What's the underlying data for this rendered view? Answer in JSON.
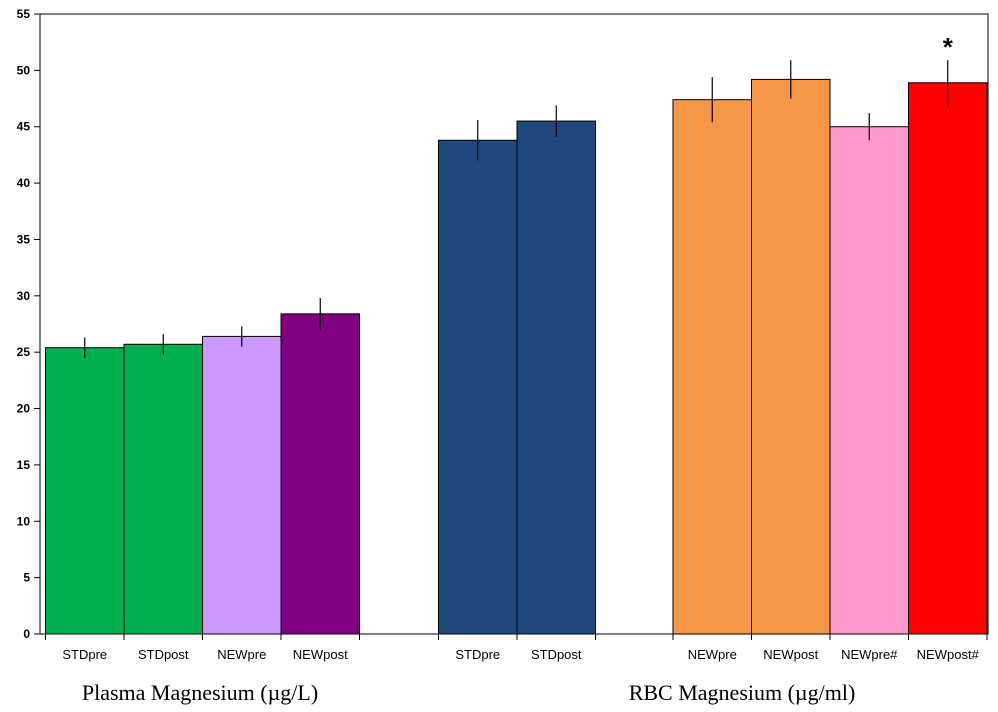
{
  "chart_data": {
    "type": "bar",
    "ylim": [
      0,
      55
    ],
    "yticks": [
      0,
      5,
      10,
      15,
      20,
      25,
      30,
      35,
      40,
      45,
      50,
      55
    ],
    "grid": false,
    "groups": [
      {
        "label": "Plasma Magnesium (µg/L)",
        "bars": [
          {
            "category": "STDpre",
            "value": 25.4,
            "error": 0.9,
            "color": "#00b050"
          },
          {
            "category": "STDpost",
            "value": 25.7,
            "error": 0.9,
            "color": "#00b050"
          },
          {
            "category": "NEWpre",
            "value": 26.4,
            "error": 0.9,
            "color": "#cc99ff"
          },
          {
            "category": "NEWpost",
            "value": 28.4,
            "error": 1.4,
            "color": "#800080"
          }
        ]
      },
      {
        "label": "",
        "bars": [
          {
            "category": "STDpre",
            "value": 43.8,
            "error": 1.8,
            "color": "#1f497d"
          },
          {
            "category": "STDpost",
            "value": 45.5,
            "error": 1.4,
            "color": "#1f497d"
          }
        ]
      },
      {
        "label": "RBC Magnesium (µg/ml)",
        "bars": [
          {
            "category": "NEWpre",
            "value": 47.4,
            "error": 2.0,
            "color": "#f79646"
          },
          {
            "category": "NEWpost",
            "value": 49.2,
            "error": 1.7,
            "color": "#f79646"
          },
          {
            "category": "NEWpre#",
            "value": 45.0,
            "error": 1.2,
            "color": "#ff99cc"
          },
          {
            "category": "NEWpost#",
            "value": 48.9,
            "error": 2.0,
            "color": "#ff0000",
            "annotation": "*"
          }
        ]
      }
    ]
  }
}
